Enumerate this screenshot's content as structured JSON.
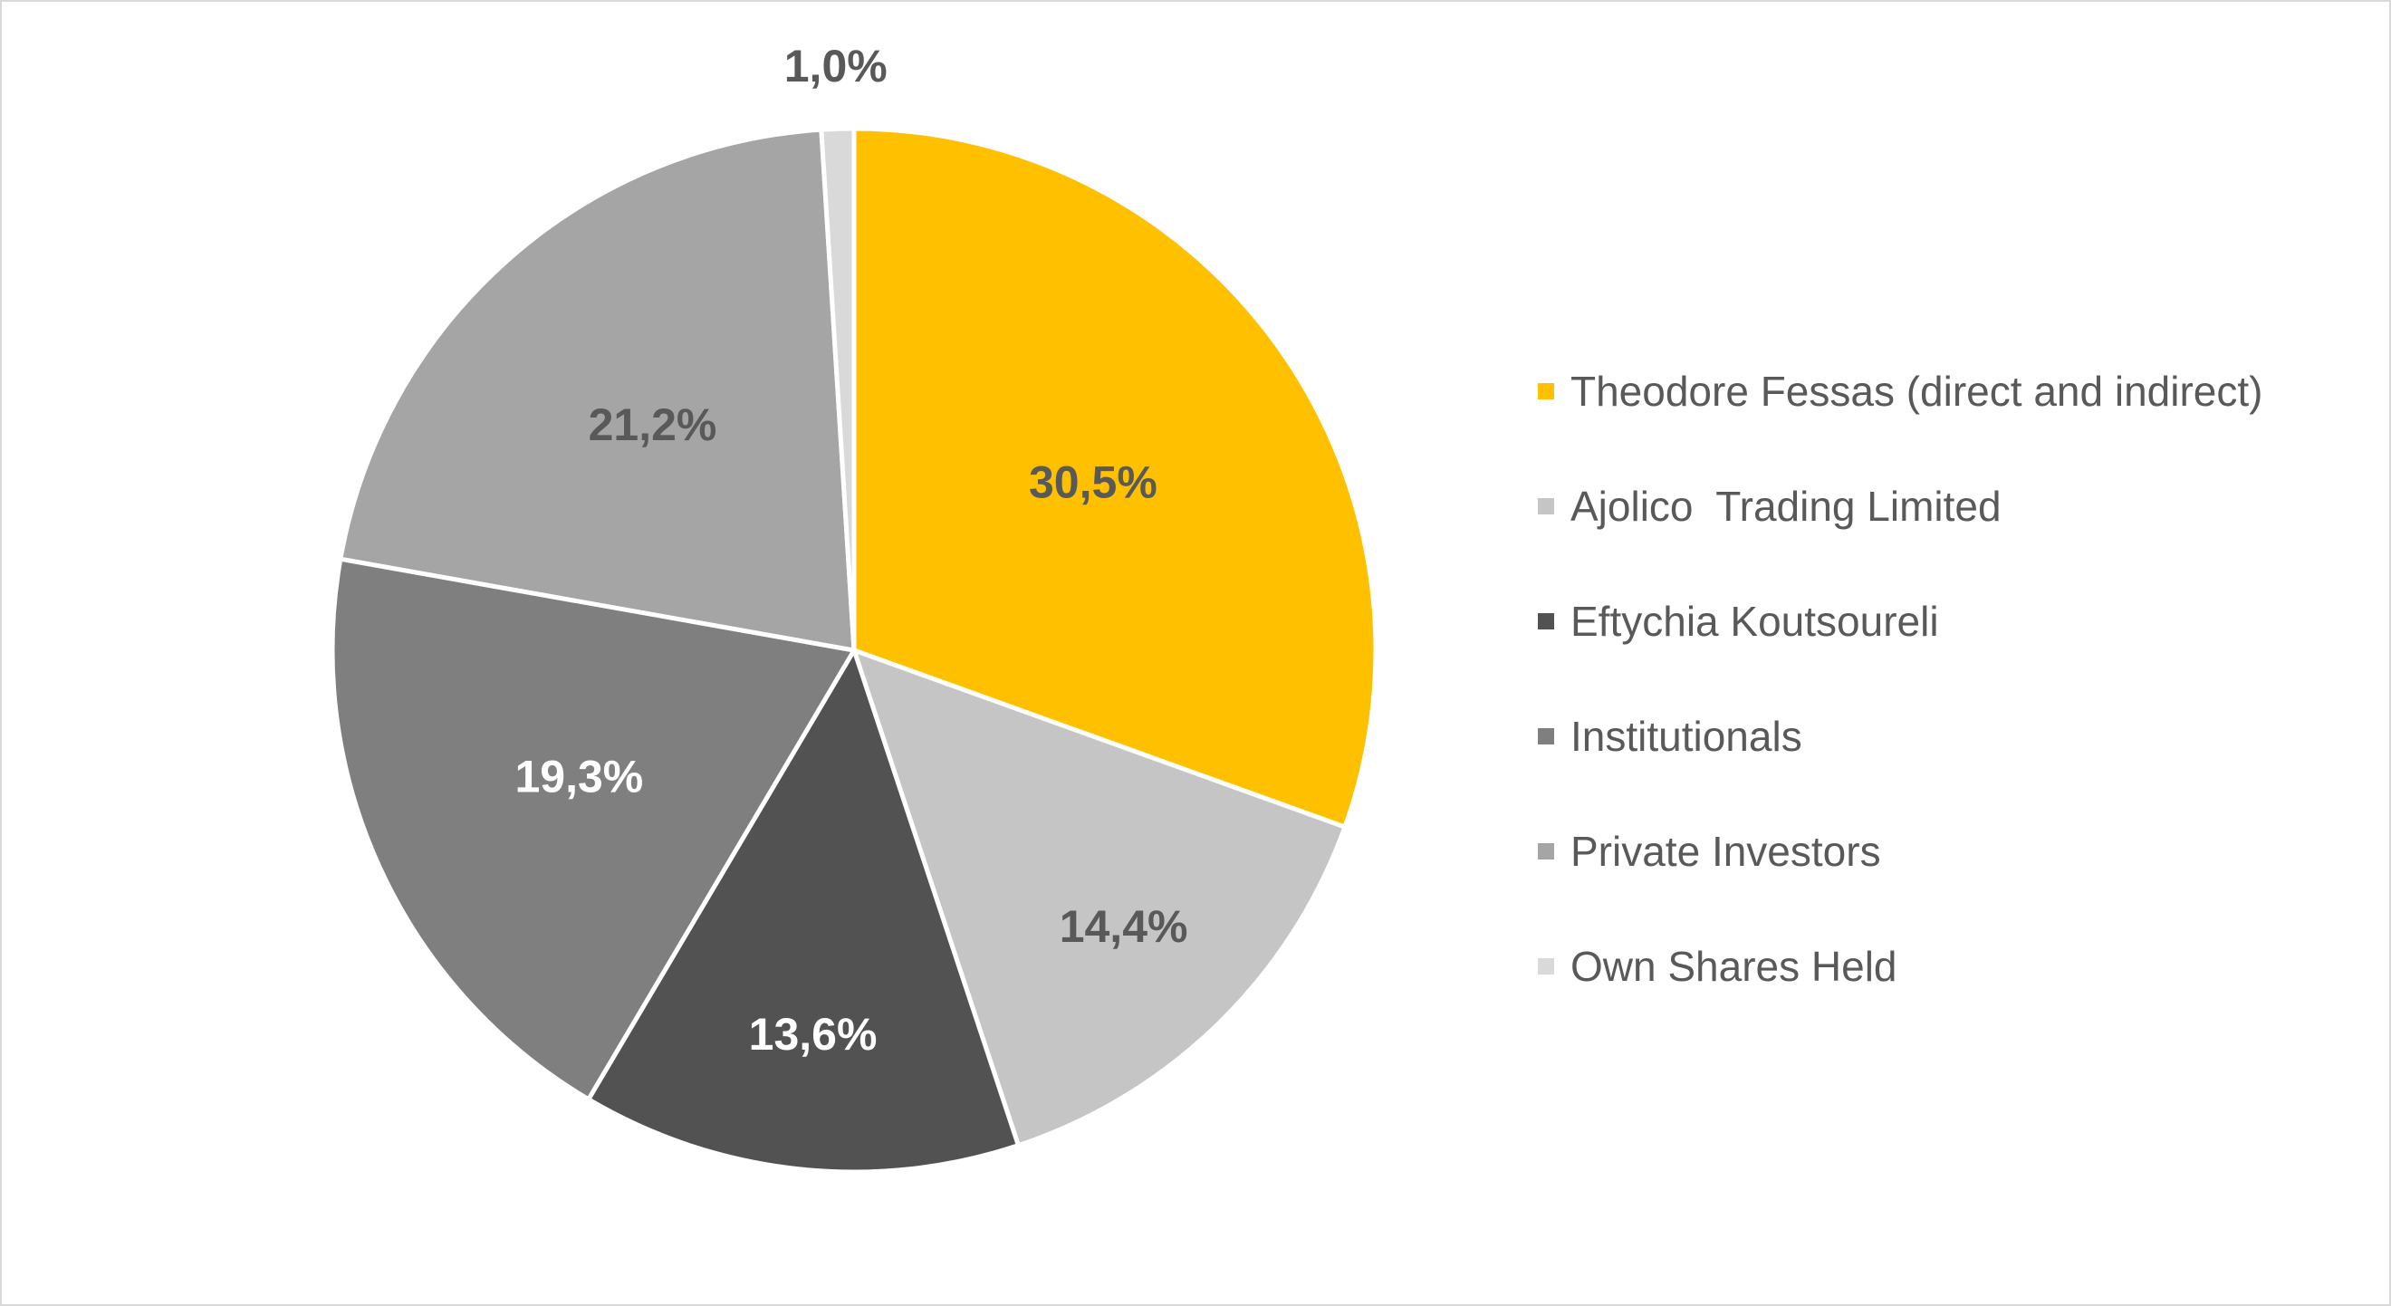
{
  "chart_data": {
    "type": "pie",
    "title": "",
    "legend_position": "right",
    "slices": [
      {
        "name": "Theodore Fessas (direct and indirect)",
        "value": 30.5,
        "label": "30,5%",
        "color": "#ffc000",
        "label_color": "#595959"
      },
      {
        "name": "Ajolico  Trading Limited",
        "value": 14.4,
        "label": "14,4%",
        "color": "#c5c5c5",
        "label_color": "#595959"
      },
      {
        "name": "Eftychia Koutsoureli",
        "value": 13.6,
        "label": "13,6%",
        "color": "#525252",
        "label_color": "#ffffff"
      },
      {
        "name": "Institutionals",
        "value": 19.3,
        "label": "19,3%",
        "color": "#7f7f7f",
        "label_color": "#ffffff"
      },
      {
        "name": "Private Investors",
        "value": 21.2,
        "label": "21,2%",
        "color": "#a5a5a5",
        "label_color": "#595959"
      },
      {
        "name": "Own Shares Held",
        "value": 1.0,
        "label": "1,0%",
        "color": "#d9d9d9",
        "label_color": "#595959"
      }
    ]
  }
}
